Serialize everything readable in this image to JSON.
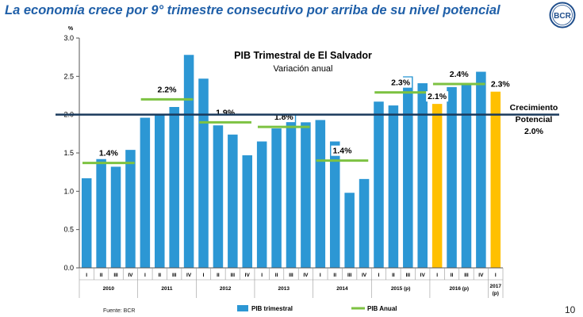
{
  "slide": {
    "title": "La economía crece por 9° trimestre consecutivo por arriba de su nivel potencial",
    "logo_text": "BCR",
    "source": "Fuente: BCR",
    "page_number": "10"
  },
  "colors": {
    "title": "#1f5fa8",
    "bar": "#2c97d4",
    "bar_highlight": "#ffc000",
    "annual_line": "#7dc242",
    "potential_line": "#1a3a5c"
  },
  "chart_data": {
    "type": "bar",
    "title": "PIB Trimestral de El Salvador",
    "subtitle": "Variación anual",
    "yunit": "%",
    "ylim": [
      0,
      3.0
    ],
    "yticks": [
      "0.0",
      "0.5",
      "1.0",
      "1.5",
      "2.0",
      "2.5",
      "3.0"
    ],
    "grid": false,
    "legend_position": "bottom",
    "categories": [
      "I",
      "II",
      "III",
      "IV",
      "I",
      "II",
      "III",
      "IV",
      "I",
      "II",
      "III",
      "IV",
      "I",
      "II",
      "III",
      "IV",
      "I",
      "II",
      "III",
      "IV",
      "I",
      "II",
      "III",
      "IV",
      "I",
      "II",
      "III",
      "IV",
      "I"
    ],
    "year_groups": [
      {
        "label": "2010",
        "count": 4
      },
      {
        "label": "2011",
        "count": 4
      },
      {
        "label": "2012",
        "count": 4
      },
      {
        "label": "2013",
        "count": 4
      },
      {
        "label": "2014",
        "count": 4
      },
      {
        "label": "2015 (p)",
        "count": 4
      },
      {
        "label": "2016 (p)",
        "count": 4
      },
      {
        "label": "2017 (p)",
        "count": 1
      }
    ],
    "series": [
      {
        "name": "PIB trimestral",
        "values": [
          1.17,
          1.42,
          1.32,
          1.54,
          1.96,
          2.0,
          2.1,
          2.78,
          2.47,
          1.86,
          1.74,
          1.47,
          1.65,
          1.82,
          2.0,
          1.9,
          1.93,
          1.65,
          0.98,
          1.16,
          2.17,
          2.12,
          2.5,
          2.41,
          2.14,
          2.36,
          2.4,
          2.56,
          2.3
        ],
        "highlight_indices": [
          24,
          28
        ]
      },
      {
        "name": "PIB Anual",
        "segments": [
          {
            "start": 0,
            "end": 3,
            "value": 1.37,
            "label": "1.4%"
          },
          {
            "start": 4,
            "end": 7,
            "value": 2.2,
            "label": "2.2%"
          },
          {
            "start": 8,
            "end": 11,
            "value": 1.9,
            "label": "1.9%"
          },
          {
            "start": 12,
            "end": 15,
            "value": 1.84,
            "label": "1.8%"
          },
          {
            "start": 16,
            "end": 19,
            "value": 1.4,
            "label": "1.4%"
          },
          {
            "start": 20,
            "end": 23,
            "value": 2.29,
            "label": "2.3%"
          },
          {
            "start": 24,
            "end": 27,
            "value": 2.4,
            "label": "2.4%"
          }
        ]
      }
    ],
    "extra_labels": [
      {
        "index": 24,
        "label": "2.1%"
      },
      {
        "index": 28,
        "label": "2.3%"
      }
    ],
    "reference_line": {
      "value": 2.0,
      "label_lines": [
        "Crecimiento",
        "Potencial",
        "2.0%"
      ]
    }
  }
}
